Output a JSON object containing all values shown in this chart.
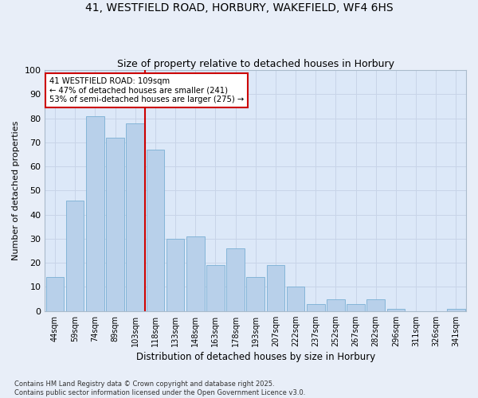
{
  "title1": "41, WESTFIELD ROAD, HORBURY, WAKEFIELD, WF4 6HS",
  "title2": "Size of property relative to detached houses in Horbury",
  "xlabel": "Distribution of detached houses by size in Horbury",
  "ylabel": "Number of detached properties",
  "categories": [
    "44sqm",
    "59sqm",
    "74sqm",
    "89sqm",
    "103sqm",
    "118sqm",
    "133sqm",
    "148sqm",
    "163sqm",
    "178sqm",
    "193sqm",
    "207sqm",
    "222sqm",
    "237sqm",
    "252sqm",
    "267sqm",
    "282sqm",
    "296sqm",
    "311sqm",
    "326sqm",
    "341sqm"
  ],
  "values": [
    14,
    46,
    81,
    72,
    78,
    67,
    30,
    31,
    19,
    26,
    14,
    19,
    10,
    3,
    5,
    3,
    5,
    1,
    0,
    0,
    1
  ],
  "bar_color": "#b8d0ea",
  "bar_edge_color": "#7aafd4",
  "vline_x_idx": 4.5,
  "vline_color": "#cc0000",
  "annotation_text": "41 WESTFIELD ROAD: 109sqm\n← 47% of detached houses are smaller (241)\n53% of semi-detached houses are larger (275) →",
  "annotation_box_color": "#ffffff",
  "annotation_box_edge": "#cc0000",
  "ylim": [
    0,
    100
  ],
  "yticks": [
    0,
    10,
    20,
    30,
    40,
    50,
    60,
    70,
    80,
    90,
    100
  ],
  "grid_color": "#c8d4e8",
  "background_color": "#dce8f8",
  "fig_background": "#e8eef8",
  "footer": "Contains HM Land Registry data © Crown copyright and database right 2025.\nContains public sector information licensed under the Open Government Licence v3.0."
}
